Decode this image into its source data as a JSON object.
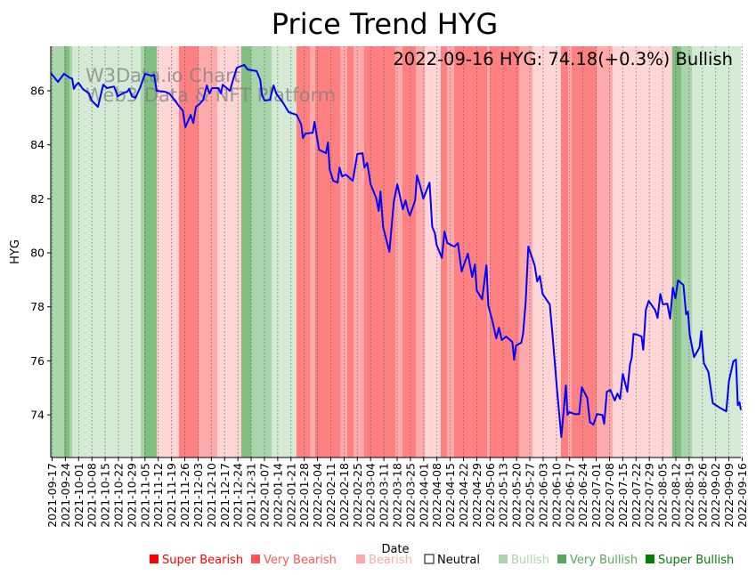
{
  "chart_data": {
    "type": "line",
    "title": "Price Trend HYG",
    "annotation": "2022-09-16 HYG: 74.18(+0.3%) Bullish",
    "watermark": [
      "W3Data.io Chart",
      "Web3 Data & NFT Platform"
    ],
    "xlabel": "Date",
    "ylabel": "HYG",
    "xlim_days": [
      0,
      364
    ],
    "ylim": [
      72.42,
      87.65
    ],
    "yticks": [
      74,
      76,
      78,
      80,
      82,
      84,
      86
    ],
    "grid": "vertical dotted at each x tick",
    "xtick_labels": [
      "2021-09-17",
      "2021-09-24",
      "2021-10-01",
      "2021-10-08",
      "2021-10-15",
      "2021-10-22",
      "2021-10-29",
      "2021-11-05",
      "2021-11-12",
      "2021-11-19",
      "2021-11-26",
      "2021-12-03",
      "2021-12-10",
      "2021-12-17",
      "2021-12-24",
      "2021-12-31",
      "2022-01-07",
      "2022-01-14",
      "2022-01-21",
      "2022-01-28",
      "2022-02-04",
      "2022-02-11",
      "2022-02-18",
      "2022-02-25",
      "2022-03-04",
      "2022-03-11",
      "2022-03-18",
      "2022-03-25",
      "2022-04-01",
      "2022-04-08",
      "2022-04-15",
      "2022-04-22",
      "2022-04-29",
      "2022-05-06",
      "2022-05-13",
      "2022-05-20",
      "2022-05-27",
      "2022-06-03",
      "2022-06-10",
      "2022-06-17",
      "2022-06-24",
      "2022-07-01",
      "2022-07-08",
      "2022-07-15",
      "2022-07-22",
      "2022-07-29",
      "2022-08-05",
      "2022-08-12",
      "2022-08-19",
      "2022-08-26",
      "2022-09-02",
      "2022-09-09",
      "2022-09-16"
    ],
    "line_color": "#0000ff",
    "series": [
      {
        "name": "HYG",
        "points_day_value": [
          [
            0,
            86.66
          ],
          [
            3.8,
            86.33
          ],
          [
            7,
            86.63
          ],
          [
            9.9,
            86.49
          ],
          [
            11.3,
            86.45
          ],
          [
            12.2,
            86.07
          ],
          [
            13.2,
            86.2
          ],
          [
            14.6,
            86.3
          ],
          [
            16.9,
            86.07
          ],
          [
            20.2,
            85.9
          ],
          [
            21.6,
            85.64
          ],
          [
            24.9,
            85.41
          ],
          [
            27.7,
            86.23
          ],
          [
            29.6,
            86.1
          ],
          [
            33.4,
            86.16
          ],
          [
            35.3,
            85.8
          ],
          [
            38.5,
            85.93
          ],
          [
            40.4,
            85.97
          ],
          [
            41.4,
            86.07
          ],
          [
            42.8,
            85.8
          ],
          [
            44.7,
            85.74
          ],
          [
            47,
            86.1
          ],
          [
            49.8,
            86.63
          ],
          [
            53.1,
            86.56
          ],
          [
            54.5,
            86.6
          ],
          [
            55.9,
            86.0
          ],
          [
            60.2,
            85.97
          ],
          [
            62.5,
            85.9
          ],
          [
            65.3,
            85.67
          ],
          [
            67.2,
            85.47
          ],
          [
            69.6,
            85.27
          ],
          [
            71,
            84.65
          ],
          [
            73.8,
            85.11
          ],
          [
            75.2,
            84.81
          ],
          [
            76.6,
            85.41
          ],
          [
            78.5,
            85.51
          ],
          [
            80.4,
            85.67
          ],
          [
            82.3,
            86.2
          ],
          [
            83.7,
            85.9
          ],
          [
            85.1,
            86.1
          ],
          [
            88.4,
            86.1
          ],
          [
            89.8,
            85.9
          ],
          [
            90.7,
            86.23
          ],
          [
            94.5,
            86.0
          ],
          [
            96.4,
            86.46
          ],
          [
            98.2,
            86.86
          ],
          [
            102,
            86.96
          ],
          [
            103.9,
            86.79
          ],
          [
            108.6,
            86.73
          ],
          [
            110.5,
            86.4
          ],
          [
            111.4,
            85.84
          ],
          [
            112.8,
            85.64
          ],
          [
            115.6,
            85.67
          ],
          [
            117.5,
            86.2
          ],
          [
            118.9,
            85.9
          ],
          [
            122.7,
            85.54
          ],
          [
            125.5,
            85.21
          ],
          [
            129.7,
            85.11
          ],
          [
            132.1,
            84.75
          ],
          [
            133,
            84.25
          ],
          [
            134.4,
            84.42
          ],
          [
            138.2,
            84.45
          ],
          [
            139.1,
            84.85
          ],
          [
            140.5,
            84.25
          ],
          [
            141.5,
            83.82
          ],
          [
            145.2,
            83.69
          ],
          [
            146.2,
            84.09
          ],
          [
            147.1,
            83.1
          ],
          [
            149,
            82.67
          ],
          [
            151.3,
            82.6
          ],
          [
            152.3,
            83.16
          ],
          [
            153.7,
            82.83
          ],
          [
            155.6,
            82.9
          ],
          [
            159.3,
            82.67
          ],
          [
            161.7,
            83.66
          ],
          [
            164.5,
            83.69
          ],
          [
            165.4,
            83.16
          ],
          [
            166.9,
            83.33
          ],
          [
            168.7,
            82.54
          ],
          [
            171.6,
            82.04
          ],
          [
            173,
            81.55
          ],
          [
            173.9,
            82.27
          ],
          [
            175.3,
            80.96
          ],
          [
            178.6,
            80.04
          ],
          [
            180.9,
            81.88
          ],
          [
            182.8,
            82.54
          ],
          [
            185.7,
            81.61
          ],
          [
            187.1,
            81.94
          ],
          [
            188.5,
            81.55
          ],
          [
            189.4,
            81.38
          ],
          [
            192.2,
            81.94
          ],
          [
            193.2,
            82.87
          ],
          [
            195,
            82.44
          ],
          [
            196.5,
            82.01
          ],
          [
            199.8,
            82.6
          ],
          [
            201.2,
            80.96
          ],
          [
            202.6,
            80.72
          ],
          [
            203.5,
            80.3
          ],
          [
            206.3,
            79.81
          ],
          [
            207.7,
            80.79
          ],
          [
            209.2,
            80.36
          ],
          [
            212.9,
            80.23
          ],
          [
            214.8,
            80.36
          ],
          [
            216.7,
            79.31
          ],
          [
            220,
            79.97
          ],
          [
            222.3,
            79.11
          ],
          [
            223.7,
            79.57
          ],
          [
            224.7,
            78.61
          ],
          [
            227.5,
            78.28
          ],
          [
            229.8,
            79.54
          ],
          [
            230.8,
            78.05
          ],
          [
            233.1,
            77.43
          ],
          [
            235,
            76.83
          ],
          [
            236.4,
            77.23
          ],
          [
            237.9,
            76.77
          ],
          [
            240.2,
            76.9
          ],
          [
            243.5,
            76.7
          ],
          [
            244.4,
            76.04
          ],
          [
            245.4,
            76.57
          ],
          [
            248.2,
            76.67
          ],
          [
            249.1,
            77.0
          ],
          [
            250.5,
            78.15
          ],
          [
            251.9,
            80.23
          ],
          [
            255.2,
            79.54
          ],
          [
            256.6,
            78.94
          ],
          [
            258,
            79.14
          ],
          [
            259.4,
            78.48
          ],
          [
            263.2,
            78.09
          ],
          [
            264.6,
            77.0
          ],
          [
            267,
            74.95
          ],
          [
            269.3,
            73.17
          ],
          [
            271.7,
            75.09
          ],
          [
            272.6,
            74.0
          ],
          [
            273.5,
            74.1
          ],
          [
            276.4,
            74.03
          ],
          [
            278.7,
            74.03
          ],
          [
            280.1,
            75.02
          ],
          [
            283,
            74.63
          ],
          [
            284.4,
            73.73
          ],
          [
            286.2,
            73.64
          ],
          [
            288.1,
            74.03
          ],
          [
            290.9,
            74.0
          ],
          [
            291.9,
            73.67
          ],
          [
            293.3,
            74.86
          ],
          [
            295.2,
            74.92
          ],
          [
            297.5,
            74.53
          ],
          [
            298.9,
            74.79
          ],
          [
            300.3,
            74.59
          ],
          [
            301.7,
            75.52
          ],
          [
            304.1,
            74.86
          ],
          [
            305.5,
            75.85
          ],
          [
            306.4,
            76.11
          ],
          [
            307.4,
            77.0
          ],
          [
            309.3,
            76.97
          ],
          [
            311.6,
            76.9
          ],
          [
            312.5,
            76.41
          ],
          [
            313.9,
            77.89
          ],
          [
            315.4,
            78.22
          ],
          [
            318.7,
            77.89
          ],
          [
            320.1,
            77.59
          ],
          [
            321.5,
            78.48
          ],
          [
            322.9,
            78.09
          ],
          [
            325.2,
            78.12
          ],
          [
            326.7,
            77.56
          ],
          [
            328.1,
            78.71
          ],
          [
            329.5,
            78.32
          ],
          [
            330.9,
            78.98
          ],
          [
            333.7,
            78.81
          ],
          [
            335.1,
            77.72
          ],
          [
            336.1,
            77.82
          ],
          [
            337,
            76.97
          ],
          [
            339.3,
            76.14
          ],
          [
            342.2,
            76.5
          ],
          [
            343.1,
            77.1
          ],
          [
            344.5,
            75.91
          ],
          [
            346.9,
            75.58
          ],
          [
            349.2,
            74.43
          ],
          [
            353,
            74.26
          ],
          [
            356.3,
            74.13
          ],
          [
            357.7,
            75.25
          ],
          [
            360,
            75.98
          ],
          [
            361.4,
            76.05
          ],
          [
            362.4,
            74.36
          ],
          [
            363.3,
            74.46
          ],
          [
            364,
            74.18
          ]
        ]
      }
    ],
    "sentiment_levels": {
      "-3": {
        "label": "Super Bearish",
        "legend_color": "#ff0000",
        "band_color": "#ff8080"
      },
      "-2": {
        "label": "Very Bearish",
        "legend_color": "#ff5555",
        "band_color": "#ffaaaa"
      },
      "-1": {
        "label": "Bearish",
        "legend_color": "#ffaaaa",
        "band_color": "#ffd5d5"
      },
      "0": {
        "label": "Neutral",
        "legend_color": "#ffffff",
        "band_color": "#ffffff"
      },
      "1": {
        "label": "Bullish",
        "legend_color": "#aad5aa",
        "band_color": "#d5ead5"
      },
      "2": {
        "label": "Very Bullish",
        "legend_color": "#55aa55",
        "band_color": "#aad5aa"
      },
      "3": {
        "label": "Super Bullish",
        "legend_color": "#008000",
        "band_color": "#80bf80"
      }
    },
    "legend": {
      "placement": "bottom",
      "order": [
        "-3",
        "-2",
        "-1",
        "0",
        "1",
        "2",
        "3"
      ],
      "labels": [
        "Super Bearish",
        "Very Bearish",
        "Bearish",
        "Neutral",
        "Bullish",
        "Very Bullish",
        "Super Bullish"
      ]
    },
    "bands_start_end_level": [
      [
        0,
        7,
        2
      ],
      [
        7,
        9.9,
        3
      ],
      [
        9.9,
        11.3,
        2
      ],
      [
        11.3,
        47.4,
        1
      ],
      [
        47.4,
        49.3,
        2
      ],
      [
        49.3,
        55.9,
        3
      ],
      [
        55.9,
        67.6,
        -1
      ],
      [
        67.6,
        78,
        -3
      ],
      [
        78,
        87.8,
        -2
      ],
      [
        87.8,
        100.5,
        -1
      ],
      [
        100.5,
        105.7,
        3
      ],
      [
        105.7,
        116.5,
        2
      ],
      [
        116.5,
        129.6,
        1
      ],
      [
        129.6,
        136.7,
        -3
      ],
      [
        136.7,
        139.5,
        -2
      ],
      [
        139.5,
        152.7,
        -3
      ],
      [
        152.7,
        156.4,
        -2
      ],
      [
        156.4,
        159.7,
        -3
      ],
      [
        159.7,
        165.3,
        -2
      ],
      [
        165.3,
        181.8,
        -3
      ],
      [
        181.8,
        185.5,
        -2
      ],
      [
        185.5,
        192.6,
        -3
      ],
      [
        192.6,
        197.3,
        -2
      ],
      [
        197.3,
        205.7,
        -1
      ],
      [
        205.7,
        209,
        -3
      ],
      [
        209,
        212.8,
        -2
      ],
      [
        212.8,
        230.2,
        -3
      ],
      [
        230.2,
        231.6,
        -2
      ],
      [
        231.6,
        247.1,
        -3
      ],
      [
        247.1,
        254.1,
        -2
      ],
      [
        254.1,
        269.1,
        -1
      ],
      [
        269.1,
        272.9,
        -3
      ],
      [
        272.9,
        274.8,
        -2
      ],
      [
        274.8,
        287.9,
        -3
      ],
      [
        287.9,
        296.4,
        -2
      ],
      [
        296.4,
        327.8,
        -1
      ],
      [
        327.8,
        332.5,
        3
      ],
      [
        332.5,
        338.2,
        2
      ],
      [
        338.2,
        364,
        1
      ]
    ]
  }
}
